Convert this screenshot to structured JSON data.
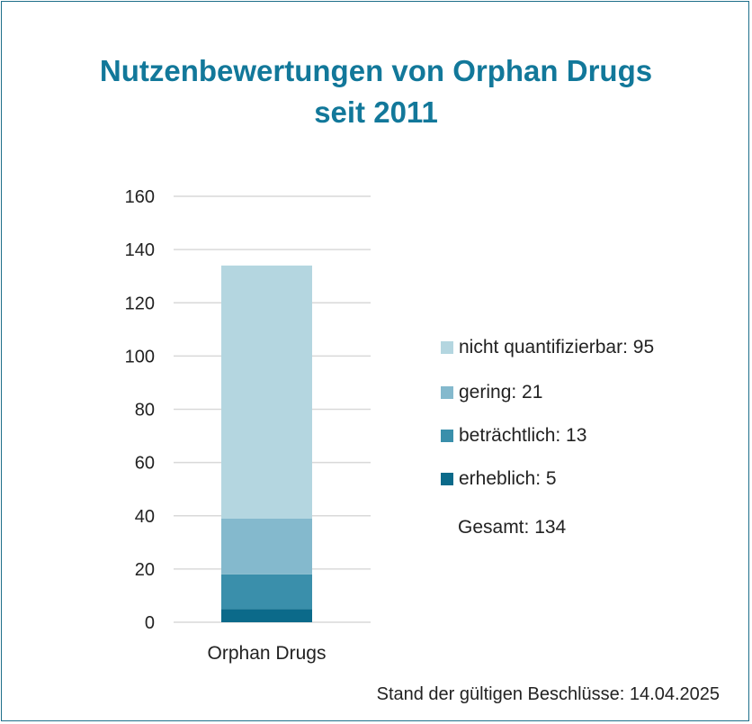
{
  "chart_data": {
    "type": "bar",
    "stacked": true,
    "title": "Nutzenbewertungen von Orphan Drugs",
    "subtitle": "seit 2011",
    "categories": [
      "Orphan Drugs"
    ],
    "series": [
      {
        "name": "erheblich",
        "values": [
          5
        ],
        "color": "#0b6a8a"
      },
      {
        "name": "beträchtlich",
        "values": [
          13
        ],
        "color": "#3a8fab"
      },
      {
        "name": "gering",
        "values": [
          21
        ],
        "color": "#84b9cd"
      },
      {
        "name": "nicht quantifizierbar",
        "values": [
          95
        ],
        "color": "#b4d6e0"
      }
    ],
    "ylim": [
      0,
      160
    ],
    "yticks": [
      "0",
      "20",
      "40",
      "60",
      "80",
      "100",
      "120",
      "140",
      "160"
    ],
    "grid": true,
    "legend_position": "right",
    "legend_entries": [
      "nicht quantifizierbar: 95",
      "gering: 21",
      "beträchtlich: 13",
      "erheblich: 5"
    ],
    "total_label": "Gesamt: 134",
    "footnote": "Stand der gültigen Beschlüsse: 14.04.2025"
  },
  "colors": {
    "title": "#12789a",
    "frame": "#1e6f8a",
    "grid": "#d9d9d9"
  }
}
